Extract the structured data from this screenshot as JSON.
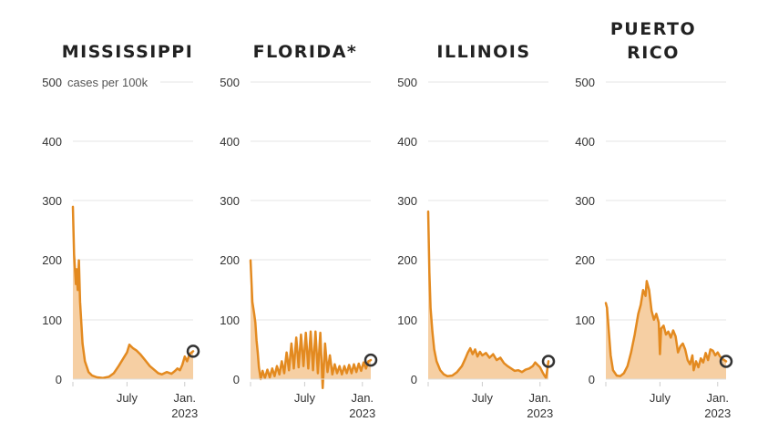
{
  "chart_data": [
    {
      "type": "area",
      "title": "MISSISSIPPI",
      "ylabel": "cases per 100k",
      "ylim": [
        0,
        500
      ],
      "yticks": [
        "0",
        "100",
        "200",
        "300",
        "400",
        "500"
      ],
      "xticks": [
        {
          "x": 0.45,
          "label": "July"
        },
        {
          "x": 0.93,
          "label": "Jan.",
          "sublabel": "2023"
        }
      ],
      "marker": "latest",
      "series": [
        {
          "values": [
            [
              0,
              290
            ],
            [
              0.01,
              210
            ],
            [
              0.025,
              160
            ],
            [
              0.03,
              185
            ],
            [
              0.04,
              150
            ],
            [
              0.05,
              200
            ],
            [
              0.06,
              130
            ],
            [
              0.08,
              60
            ],
            [
              0.1,
              30
            ],
            [
              0.13,
              12
            ],
            [
              0.16,
              6
            ],
            [
              0.2,
              3
            ],
            [
              0.25,
              2
            ],
            [
              0.3,
              4
            ],
            [
              0.34,
              10
            ],
            [
              0.38,
              22
            ],
            [
              0.42,
              35
            ],
            [
              0.45,
              45
            ],
            [
              0.47,
              58
            ],
            [
              0.5,
              52
            ],
            [
              0.53,
              48
            ],
            [
              0.56,
              42
            ],
            [
              0.6,
              32
            ],
            [
              0.64,
              22
            ],
            [
              0.68,
              15
            ],
            [
              0.71,
              10
            ],
            [
              0.74,
              8
            ],
            [
              0.78,
              12
            ],
            [
              0.82,
              9
            ],
            [
              0.85,
              14
            ],
            [
              0.87,
              18
            ],
            [
              0.89,
              15
            ],
            [
              0.91,
              24
            ],
            [
              0.93,
              38
            ],
            [
              0.95,
              30
            ],
            [
              0.97,
              42
            ],
            [
              1,
              47
            ]
          ]
        }
      ]
    },
    {
      "type": "area",
      "title": "FLORIDA*",
      "ylim": [
        0,
        500
      ],
      "yticks": [
        "0",
        "100",
        "200",
        "300",
        "400",
        "500"
      ],
      "xticks": [
        {
          "x": 0.45,
          "label": "July"
        },
        {
          "x": 0.93,
          "label": "Jan.",
          "sublabel": "2023"
        }
      ],
      "marker": "latest",
      "series": [
        {
          "values": [
            [
              0,
              200
            ],
            [
              0.015,
              130
            ],
            [
              0.03,
              110
            ],
            [
              0.04,
              95
            ],
            [
              0.05,
              65
            ],
            [
              0.06,
              45
            ],
            [
              0.07,
              20
            ],
            [
              0.085,
              0
            ],
            [
              0.1,
              14
            ],
            [
              0.12,
              2
            ],
            [
              0.14,
              16
            ],
            [
              0.16,
              3
            ],
            [
              0.18,
              18
            ],
            [
              0.2,
              5
            ],
            [
              0.22,
              22
            ],
            [
              0.24,
              8
            ],
            [
              0.26,
              30
            ],
            [
              0.28,
              10
            ],
            [
              0.3,
              45
            ],
            [
              0.32,
              15
            ],
            [
              0.34,
              60
            ],
            [
              0.36,
              18
            ],
            [
              0.38,
              70
            ],
            [
              0.4,
              20
            ],
            [
              0.42,
              75
            ],
            [
              0.44,
              22
            ],
            [
              0.46,
              78
            ],
            [
              0.48,
              18
            ],
            [
              0.5,
              80
            ],
            [
              0.52,
              15
            ],
            [
              0.54,
              80
            ],
            [
              0.56,
              10
            ],
            [
              0.58,
              78
            ],
            [
              0.6,
              -15
            ],
            [
              0.62,
              60
            ],
            [
              0.64,
              12
            ],
            [
              0.66,
              40
            ],
            [
              0.68,
              8
            ],
            [
              0.7,
              25
            ],
            [
              0.72,
              10
            ],
            [
              0.74,
              22
            ],
            [
              0.76,
              8
            ],
            [
              0.78,
              22
            ],
            [
              0.8,
              10
            ],
            [
              0.82,
              24
            ],
            [
              0.84,
              10
            ],
            [
              0.86,
              25
            ],
            [
              0.88,
              12
            ],
            [
              0.9,
              26
            ],
            [
              0.92,
              14
            ],
            [
              0.94,
              28
            ],
            [
              0.96,
              18
            ],
            [
              0.98,
              30
            ],
            [
              1,
              32
            ]
          ]
        }
      ]
    },
    {
      "type": "area",
      "title": "ILLINOIS",
      "ylim": [
        0,
        500
      ],
      "yticks": [
        "0",
        "100",
        "200",
        "300",
        "400",
        "500"
      ],
      "xticks": [
        {
          "x": 0.45,
          "label": "July"
        },
        {
          "x": 0.93,
          "label": "Jan.",
          "sublabel": "2023"
        }
      ],
      "marker": "latest",
      "series": [
        {
          "values": [
            [
              0,
              282
            ],
            [
              0.01,
              180
            ],
            [
              0.02,
              120
            ],
            [
              0.035,
              80
            ],
            [
              0.05,
              50
            ],
            [
              0.07,
              30
            ],
            [
              0.1,
              15
            ],
            [
              0.13,
              8
            ],
            [
              0.16,
              5
            ],
            [
              0.2,
              6
            ],
            [
              0.24,
              12
            ],
            [
              0.28,
              22
            ],
            [
              0.31,
              35
            ],
            [
              0.33,
              45
            ],
            [
              0.35,
              52
            ],
            [
              0.37,
              42
            ],
            [
              0.39,
              50
            ],
            [
              0.41,
              38
            ],
            [
              0.43,
              46
            ],
            [
              0.45,
              40
            ],
            [
              0.48,
              44
            ],
            [
              0.51,
              36
            ],
            [
              0.54,
              42
            ],
            [
              0.57,
              32
            ],
            [
              0.6,
              36
            ],
            [
              0.63,
              27
            ],
            [
              0.66,
              22
            ],
            [
              0.69,
              18
            ],
            [
              0.72,
              14
            ],
            [
              0.75,
              15
            ],
            [
              0.78,
              12
            ],
            [
              0.81,
              16
            ],
            [
              0.84,
              18
            ],
            [
              0.87,
              22
            ],
            [
              0.89,
              28
            ],
            [
              0.91,
              24
            ],
            [
              0.93,
              20
            ],
            [
              0.95,
              12
            ],
            [
              0.97,
              5
            ],
            [
              0.98,
              2
            ],
            [
              1,
              30
            ]
          ]
        }
      ]
    },
    {
      "type": "area",
      "title": [
        "PUERTO",
        "RICO"
      ],
      "ylim": [
        0,
        500
      ],
      "yticks": [
        "0",
        "100",
        "200",
        "300",
        "400",
        "500"
      ],
      "xticks": [
        {
          "x": 0.45,
          "label": "July"
        },
        {
          "x": 0.93,
          "label": "Jan.",
          "sublabel": "2023"
        }
      ],
      "marker": "latest",
      "series": [
        {
          "values": [
            [
              0,
              128
            ],
            [
              0.01,
              120
            ],
            [
              0.025,
              80
            ],
            [
              0.04,
              40
            ],
            [
              0.06,
              15
            ],
            [
              0.09,
              6
            ],
            [
              0.12,
              5
            ],
            [
              0.15,
              10
            ],
            [
              0.18,
              22
            ],
            [
              0.21,
              45
            ],
            [
              0.24,
              75
            ],
            [
              0.27,
              110
            ],
            [
              0.29,
              125
            ],
            [
              0.31,
              150
            ],
            [
              0.33,
              140
            ],
            [
              0.34,
              165
            ],
            [
              0.36,
              150
            ],
            [
              0.38,
              115
            ],
            [
              0.4,
              100
            ],
            [
              0.42,
              110
            ],
            [
              0.44,
              95
            ],
            [
              0.45,
              42
            ],
            [
              0.46,
              85
            ],
            [
              0.48,
              90
            ],
            [
              0.5,
              75
            ],
            [
              0.52,
              80
            ],
            [
              0.54,
              70
            ],
            [
              0.56,
              82
            ],
            [
              0.58,
              72
            ],
            [
              0.6,
              45
            ],
            [
              0.62,
              55
            ],
            [
              0.64,
              60
            ],
            [
              0.66,
              50
            ],
            [
              0.68,
              32
            ],
            [
              0.7,
              25
            ],
            [
              0.72,
              40
            ],
            [
              0.73,
              15
            ],
            [
              0.75,
              30
            ],
            [
              0.77,
              20
            ],
            [
              0.79,
              35
            ],
            [
              0.81,
              28
            ],
            [
              0.83,
              44
            ],
            [
              0.85,
              32
            ],
            [
              0.87,
              50
            ],
            [
              0.89,
              48
            ],
            [
              0.91,
              40
            ],
            [
              0.93,
              45
            ],
            [
              0.95,
              38
            ],
            [
              0.97,
              34
            ],
            [
              1,
              30
            ]
          ]
        }
      ]
    }
  ],
  "colors": {
    "line": "#e38a20",
    "fill": "#f6cfa3",
    "marker": "#333333",
    "grid": "#e6e6e6"
  }
}
